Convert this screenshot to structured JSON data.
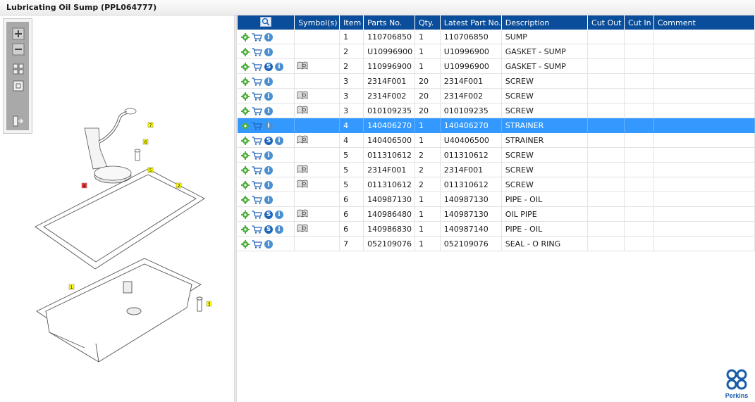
{
  "window": {
    "title": "Lubricating Oil Sump (PPL064777)"
  },
  "colors": {
    "header_bg": "#0a4d9a",
    "selection": "#3399ff",
    "accent": "#1a5ca8"
  },
  "toolbar": {
    "buttons": [
      {
        "name": "zoom-in-icon"
      },
      {
        "name": "zoom-out-icon"
      },
      {
        "name": "fit-all-icon"
      },
      {
        "name": "actual-size-icon"
      },
      {
        "name": "toggle-list-icon"
      }
    ]
  },
  "diagram": {
    "callouts": [
      "7",
      "6",
      "5",
      "4",
      "2",
      "1",
      "3"
    ]
  },
  "table": {
    "columns": [
      "",
      "Symbol(s)",
      "Item",
      "Parts No.",
      "Qty.",
      "Latest Part No.",
      "Description",
      "Cut Out",
      "Cut In",
      "Comment"
    ],
    "rows": [
      {
        "s": false,
        "book": false,
        "item": "1",
        "part": "110706850",
        "qty": "1",
        "latest": "110706850",
        "desc": "SUMP"
      },
      {
        "s": false,
        "book": false,
        "item": "2",
        "part": "U10996900",
        "qty": "1",
        "latest": "U10996900",
        "desc": "GASKET - SUMP"
      },
      {
        "s": true,
        "book": true,
        "item": "2",
        "part": "110996900",
        "qty": "1",
        "latest": "U10996900",
        "desc": "GASKET - SUMP"
      },
      {
        "s": false,
        "book": false,
        "item": "3",
        "part": "2314F001",
        "qty": "20",
        "latest": "2314F001",
        "desc": "SCREW"
      },
      {
        "s": false,
        "book": true,
        "item": "3",
        "part": "2314F002",
        "qty": "20",
        "latest": "2314F002",
        "desc": "SCREW"
      },
      {
        "s": false,
        "book": true,
        "item": "3",
        "part": "010109235",
        "qty": "20",
        "latest": "010109235",
        "desc": "SCREW"
      },
      {
        "s": false,
        "book": false,
        "item": "4",
        "part": "140406270",
        "qty": "1",
        "latest": "140406270",
        "desc": "STRAINER",
        "selected": true
      },
      {
        "s": true,
        "book": true,
        "item": "4",
        "part": "140406500",
        "qty": "1",
        "latest": "U40406500",
        "desc": "STRAINER"
      },
      {
        "s": false,
        "book": false,
        "item": "5",
        "part": "011310612",
        "qty": "2",
        "latest": "011310612",
        "desc": "SCREW"
      },
      {
        "s": false,
        "book": true,
        "item": "5",
        "part": "2314F001",
        "qty": "2",
        "latest": "2314F001",
        "desc": "SCREW"
      },
      {
        "s": false,
        "book": true,
        "item": "5",
        "part": "011310612",
        "qty": "2",
        "latest": "011310612",
        "desc": "SCREW"
      },
      {
        "s": false,
        "book": false,
        "item": "6",
        "part": "140987130",
        "qty": "1",
        "latest": "140987130",
        "desc": "PIPE - OIL"
      },
      {
        "s": true,
        "book": true,
        "item": "6",
        "part": "140986480",
        "qty": "1",
        "latest": "140987130",
        "desc": "OIL PIPE"
      },
      {
        "s": true,
        "book": true,
        "item": "6",
        "part": "140986830",
        "qty": "1",
        "latest": "140987140",
        "desc": "PIPE - OIL"
      },
      {
        "s": false,
        "book": false,
        "item": "7",
        "part": "052109076",
        "qty": "1",
        "latest": "052109076",
        "desc": "SEAL - O RING"
      }
    ]
  },
  "brand": {
    "name": "Perkins"
  }
}
